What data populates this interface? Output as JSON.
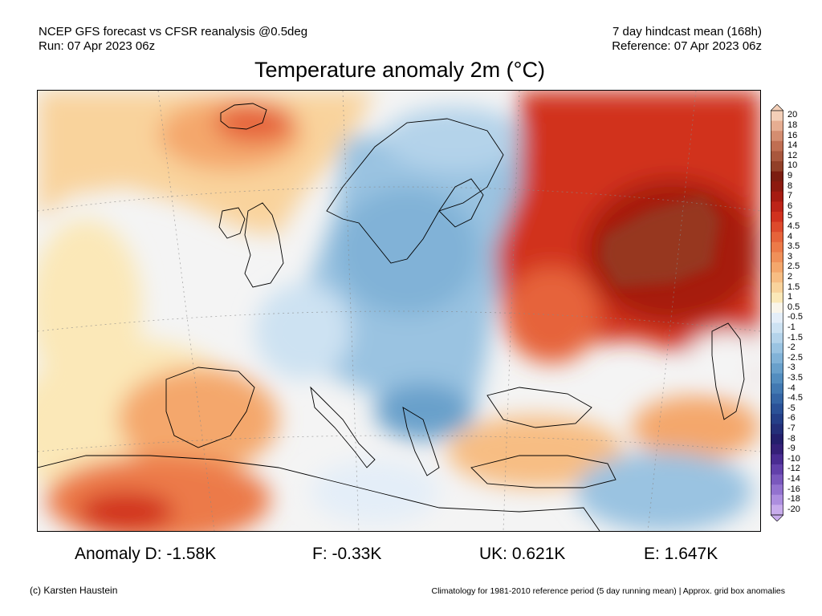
{
  "header": {
    "model_line": "NCEP GFS forecast vs CFSR reanalysis @0.5deg",
    "run_line": "Run: 07 Apr 2023 06z",
    "hindcast_line": "7 day hindcast mean (168h)",
    "reference_line": "Reference: 07 Apr 2023 06z"
  },
  "title": "Temperature anomaly 2m (°C)",
  "colorbar": {
    "labels": [
      "20",
      "18",
      "16",
      "14",
      "12",
      "10",
      "9",
      "8",
      "7",
      "6",
      "5",
      "4.5",
      "4",
      "3.5",
      "3",
      "2.5",
      "2",
      "1.5",
      "1",
      "0.5",
      "-0.5",
      "-1",
      "-1.5",
      "-2",
      "-2.5",
      "-3",
      "-3.5",
      "-4",
      "-4.5",
      "-5",
      "-6",
      "-7",
      "-8",
      "-9",
      "-10",
      "-12",
      "-14",
      "-16",
      "-18",
      "-20"
    ],
    "colors": [
      "#f3cfb8",
      "#e6ad91",
      "#d48d70",
      "#c06e52",
      "#a9573d",
      "#924028",
      "#7c1d10",
      "#8d1a0f",
      "#a61b11",
      "#bd2418",
      "#d1321f",
      "#dd4a2c",
      "#e6633a",
      "#ec7a48",
      "#f09059",
      "#f4a76c",
      "#f7bd83",
      "#f9d39c",
      "#fbe8b8",
      "#f9f5ea",
      "#e4eef8",
      "#cde2f2",
      "#b4d3ea",
      "#9ac3e1",
      "#81b2d7",
      "#69a0cb",
      "#538dbf",
      "#4279b2",
      "#3565a5",
      "#2b5197",
      "#253f88",
      "#242f79",
      "#241f6c",
      "#352078",
      "#4a2c92",
      "#6240aa",
      "#7a58bd",
      "#9372cf",
      "#ad8edf",
      "#c8acec"
    ]
  },
  "stats": {
    "germany": "Anomaly D: -1.58K",
    "france": "F: -0.33K",
    "uk": "UK: 0.621K",
    "spain": "E: 1.647K"
  },
  "footer": {
    "credit": "(c) Karsten Haustein",
    "note": "Climatology for 1981-2010 reference period (5 day running mean) | Approx. grid box anomalies"
  }
}
